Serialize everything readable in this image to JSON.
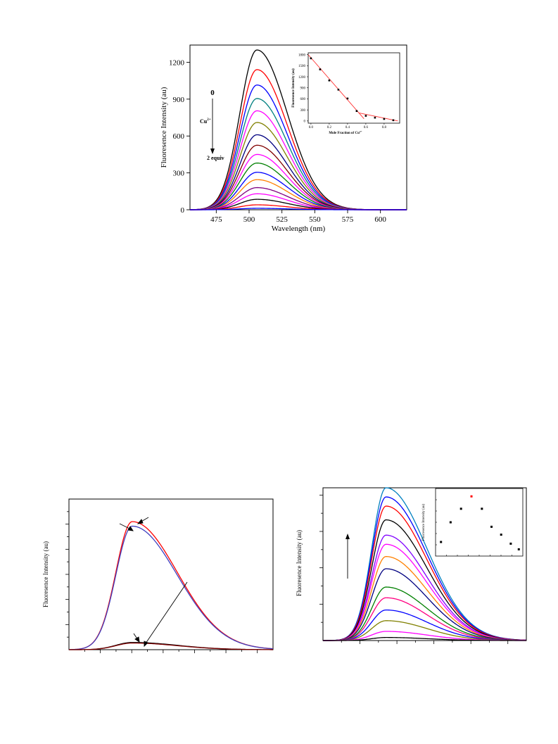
{
  "chart_data": [
    {
      "id": "main",
      "type": "line",
      "xlabel": "Wavelength (nm)",
      "ylabel": "Fluoresence Intensity (au)",
      "xlim": [
        455,
        620
      ],
      "ylim": [
        0,
        1340
      ],
      "xticks": [
        475,
        500,
        525,
        550,
        575,
        600
      ],
      "yticks": [
        0,
        300,
        600,
        900,
        1200
      ],
      "annotations": {
        "top": "0",
        "ion_base": "Cu",
        "ion_sup": "2+",
        "bottom": "2 equiv"
      },
      "curve_shape": {
        "peak_x": 506,
        "sigma_left": 13,
        "sigma_right": 23
      },
      "series": [
        {
          "color": "#000000",
          "peak": 1300
        },
        {
          "color": "#ff0000",
          "peak": 1140
        },
        {
          "color": "#0000ff",
          "peak": 1015
        },
        {
          "color": "#008080",
          "peak": 905
        },
        {
          "color": "#ff00ff",
          "peak": 805
        },
        {
          "color": "#808000",
          "peak": 710
        },
        {
          "color": "#000080",
          "peak": 610
        },
        {
          "color": "#800000",
          "peak": 525
        },
        {
          "color": "#ff00ff",
          "peak": 450
        },
        {
          "color": "#008000",
          "peak": 380
        },
        {
          "color": "#0000ff",
          "peak": 305
        },
        {
          "color": "#ff8000",
          "peak": 245
        },
        {
          "color": "#800080",
          "peak": 180
        },
        {
          "color": "#ff00ff",
          "peak": 130
        },
        {
          "color": "#000000",
          "peak": 85
        },
        {
          "color": "#ff0000",
          "peak": 40
        },
        {
          "color": "#0000ff",
          "peak": 12
        }
      ]
    },
    {
      "id": "inset",
      "type": "scatter",
      "xlabel": "Mole Fraction of Cu",
      "xlabel_sup": "2+",
      "ylabel": "Fluoresence Intensity (au)",
      "xlim": [
        -0.03,
        0.97
      ],
      "ylim": [
        -60,
        1850
      ],
      "xticks": [
        0.0,
        0.2,
        0.4,
        0.6,
        0.8
      ],
      "yticks": [
        0,
        300,
        600,
        900,
        1200,
        1500,
        1800
      ],
      "points": [
        {
          "x": 0.0,
          "y": 1700
        },
        {
          "x": 0.1,
          "y": 1400
        },
        {
          "x": 0.2,
          "y": 1100
        },
        {
          "x": 0.3,
          "y": 850
        },
        {
          "x": 0.4,
          "y": 610
        },
        {
          "x": 0.5,
          "y": 270
        },
        {
          "x": 0.6,
          "y": 140
        },
        {
          "x": 0.7,
          "y": 90
        },
        {
          "x": 0.8,
          "y": 55
        },
        {
          "x": 0.9,
          "y": 20
        }
      ],
      "fit_lines": [
        {
          "x": [
            -0.03,
            0.58
          ],
          "y": [
            1800,
            60
          ]
        },
        {
          "x": [
            0.52,
            0.95
          ],
          "y": [
            220,
            0
          ]
        }
      ],
      "fit_color": "#ff3030"
    },
    {
      "id": "bottom_left",
      "type": "line",
      "ylabel": "Fluoresence Intensity (au)",
      "xlim": [
        0,
        100
      ],
      "ylim": [
        0,
        100
      ],
      "curve_shape": {
        "peak_x": 31,
        "sigma_left": 8,
        "sigma_right": 22
      },
      "series": [
        {
          "color": "#ff0000",
          "peak": 85
        },
        {
          "color": "#4040c0",
          "peak": 82
        },
        {
          "color": "#000000",
          "peak": 4.8
        },
        {
          "color": "#800000",
          "peak": 4.4
        }
      ]
    },
    {
      "id": "bottom_right",
      "type": "line",
      "ylabel": "Fluoresence Intensity (au)",
      "xlim": [
        0,
        100
      ],
      "ylim": [
        0,
        100
      ],
      "curve_shape": {
        "peak_x": 31,
        "sigma_left": 7,
        "sigma_right": 20
      },
      "series": [
        {
          "color": "#0080c0",
          "peak": 100
        },
        {
          "color": "#0000ff",
          "peak": 94
        },
        {
          "color": "#ff0000",
          "peak": 88
        },
        {
          "color": "#000000",
          "peak": 79
        },
        {
          "color": "#8000ff",
          "peak": 69
        },
        {
          "color": "#ff00ff",
          "peak": 63
        },
        {
          "color": "#ff8000",
          "peak": 55
        },
        {
          "color": "#000080",
          "peak": 47
        },
        {
          "color": "#008000",
          "peak": 35
        },
        {
          "color": "#ff0080",
          "peak": 28
        },
        {
          "color": "#0000ff",
          "peak": 20
        },
        {
          "color": "#808000",
          "peak": 13
        },
        {
          "color": "#ff00ff",
          "peak": 6
        },
        {
          "color": "#000000",
          "peak": 2
        }
      ]
    },
    {
      "id": "bottom_right_inset",
      "type": "scatter",
      "ylabel": "Fluoresence Intensity (au)",
      "xlim": [
        0,
        1
      ],
      "ylim": [
        0,
        1
      ],
      "points": [
        {
          "x": 0.05,
          "y": 0.15,
          "color": "#000000"
        },
        {
          "x": 0.17,
          "y": 0.5,
          "color": "#000000"
        },
        {
          "x": 0.3,
          "y": 0.74,
          "color": "#000000"
        },
        {
          "x": 0.43,
          "y": 0.96,
          "color": "#ff0000"
        },
        {
          "x": 0.56,
          "y": 0.74,
          "color": "#000000"
        },
        {
          "x": 0.68,
          "y": 0.42,
          "color": "#000000"
        },
        {
          "x": 0.8,
          "y": 0.28,
          "color": "#000000"
        },
        {
          "x": 0.92,
          "y": 0.12,
          "color": "#000000"
        },
        {
          "x": 1.02,
          "y": 0.02,
          "color": "#000000"
        }
      ]
    }
  ]
}
